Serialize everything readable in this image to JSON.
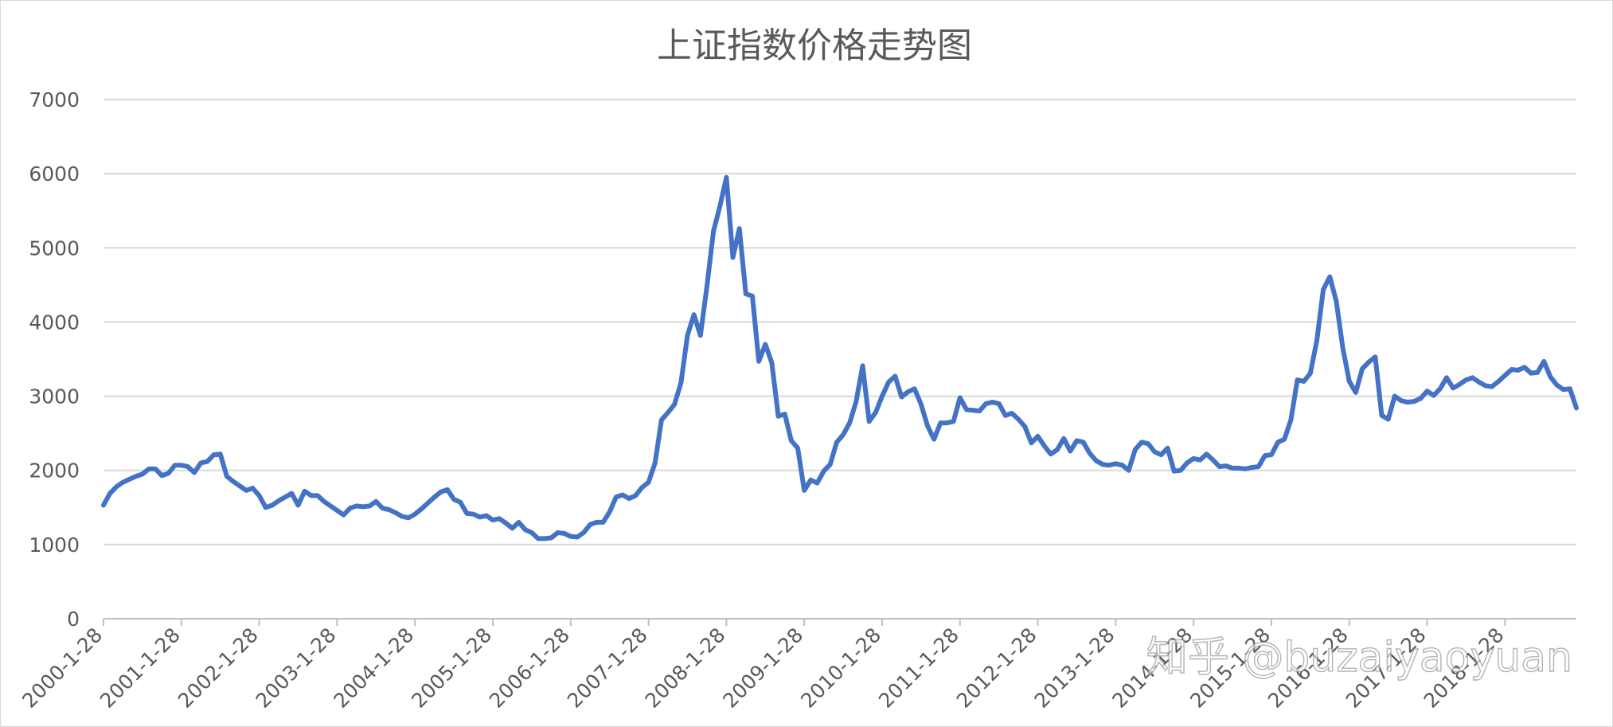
{
  "chart_data": {
    "type": "line",
    "title": "上证指数价格走势图",
    "xlabel": "",
    "ylabel": "",
    "ylim": [
      0,
      7000
    ],
    "yticks": [
      0,
      1000,
      2000,
      3000,
      4000,
      5000,
      6000,
      7000
    ],
    "xtick_labels": [
      "2000-1-28",
      "2001-1-28",
      "2002-1-28",
      "2003-1-28",
      "2004-1-28",
      "2005-1-28",
      "2006-1-28",
      "2007-1-28",
      "2008-1-28",
      "2009-1-28",
      "2010-1-28",
      "2011-1-28",
      "2012-1-28",
      "2013-1-28",
      "2014-1-28",
      "2015-1-28",
      "2016-1-28",
      "2017-1-28",
      "2018-1-28"
    ],
    "grid": true,
    "line_color": "#4472c4",
    "series": [
      {
        "values": [
          1530,
          1690,
          1780,
          1840,
          1880,
          1920,
          1950,
          2020,
          2020,
          1930,
          1960,
          2070,
          2070,
          2050,
          1970,
          2100,
          2120,
          2210,
          2220,
          1920,
          1850,
          1790,
          1730,
          1760,
          1660,
          1500,
          1530,
          1590,
          1640,
          1690,
          1530,
          1720,
          1660,
          1660,
          1580,
          1520,
          1460,
          1400,
          1490,
          1520,
          1510,
          1520,
          1580,
          1490,
          1470,
          1430,
          1380,
          1360,
          1410,
          1480,
          1560,
          1640,
          1710,
          1740,
          1610,
          1570,
          1420,
          1410,
          1370,
          1390,
          1330,
          1350,
          1290,
          1220,
          1300,
          1200,
          1160,
          1080,
          1080,
          1090,
          1160,
          1150,
          1110,
          1100,
          1160,
          1270,
          1300,
          1300,
          1440,
          1640,
          1670,
          1620,
          1660,
          1770,
          1840,
          2100,
          2680,
          2780,
          2890,
          3180,
          3820,
          4100,
          3820,
          4480,
          5220,
          5560,
          5950,
          4870,
          5260,
          4380,
          4350,
          3470,
          3700,
          3450,
          2730,
          2760,
          2400,
          2300,
          1730,
          1870,
          1830,
          1990,
          2080,
          2380,
          2480,
          2640,
          2930,
          3410,
          2660,
          2780,
          3000,
          3190,
          3270,
          2990,
          3060,
          3100,
          2890,
          2600,
          2420,
          2640,
          2640,
          2660,
          2980,
          2820,
          2810,
          2800,
          2900,
          2920,
          2900,
          2740,
          2770,
          2690,
          2590,
          2370,
          2460,
          2330,
          2220,
          2280,
          2430,
          2260,
          2400,
          2380,
          2230,
          2130,
          2080,
          2070,
          2090,
          2070,
          2000,
          2280,
          2380,
          2360,
          2250,
          2210,
          2300,
          1990,
          2000,
          2100,
          2160,
          2140,
          2220,
          2140,
          2050,
          2060,
          2030,
          2030,
          2020,
          2040,
          2050,
          2200,
          2210,
          2380,
          2420,
          2680,
          3220,
          3200,
          3310,
          3750,
          4440,
          4610,
          4280,
          3650,
          3200,
          3050,
          3370,
          3460,
          3530,
          2740,
          2690,
          3000,
          2940,
          2920,
          2930,
          2970,
          3070,
          3010,
          3100,
          3250,
          3110,
          3160,
          3220,
          3250,
          3190,
          3140,
          3130,
          3200,
          3280,
          3360,
          3350,
          3390,
          3310,
          3320,
          3470,
          3260,
          3150,
          3090,
          3100,
          2840
        ]
      }
    ],
    "watermark": "知乎 @buzaiyaoyuan"
  }
}
